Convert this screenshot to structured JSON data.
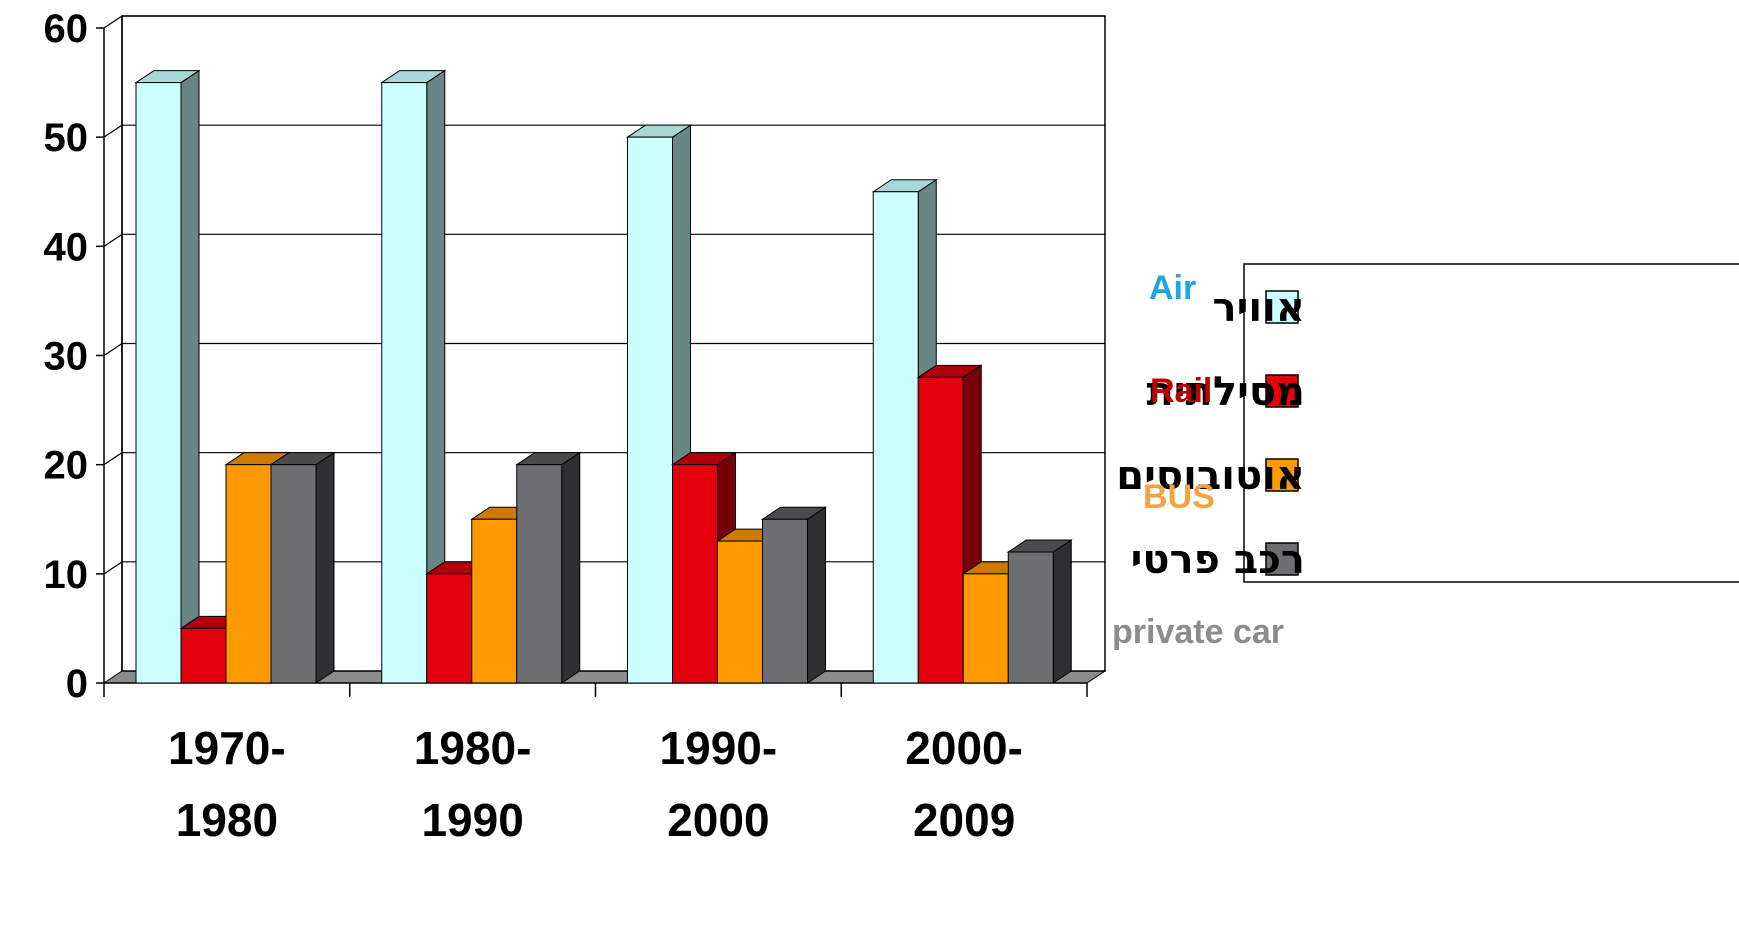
{
  "chart_data": {
    "type": "bar",
    "categories": [
      [
        "1970-",
        "1980"
      ],
      [
        "1980-",
        "1990"
      ],
      [
        "1990-",
        "2000"
      ],
      [
        "2000-",
        "2009"
      ]
    ],
    "series": [
      {
        "name": "אוויר",
        "english": "Air",
        "color": "#ccffff",
        "side": "#6a8585",
        "top": "#a9d6d6",
        "english_color": "#1ba7df",
        "values": [
          55,
          55,
          50,
          45
        ]
      },
      {
        "name": "מסילתית",
        "english": "Rail",
        "color": "#e3000f",
        "side": "#770008",
        "top": "#b0000b",
        "english_color": "#c00000",
        "values": [
          5,
          10,
          20,
          28
        ]
      },
      {
        "name": "אוטובוסים",
        "english": "BUS",
        "color": "#ff9900",
        "side": "#8a5200",
        "top": "#cc7a00",
        "english_color": "#f5a340",
        "values": [
          20,
          15,
          13,
          10
        ]
      },
      {
        "name": "רכב פרטי",
        "english": "private car",
        "color": "#6d6e71",
        "side": "#2f3032",
        "top": "#4a4b4d",
        "english_color": "#8c8c8c",
        "values": [
          20,
          20,
          15,
          12
        ]
      }
    ],
    "ylim": [
      0,
      60
    ],
    "yticks": [
      "0",
      "10",
      "20",
      "30",
      "40",
      "50",
      "60"
    ],
    "grid": true,
    "legend_position": "right"
  }
}
